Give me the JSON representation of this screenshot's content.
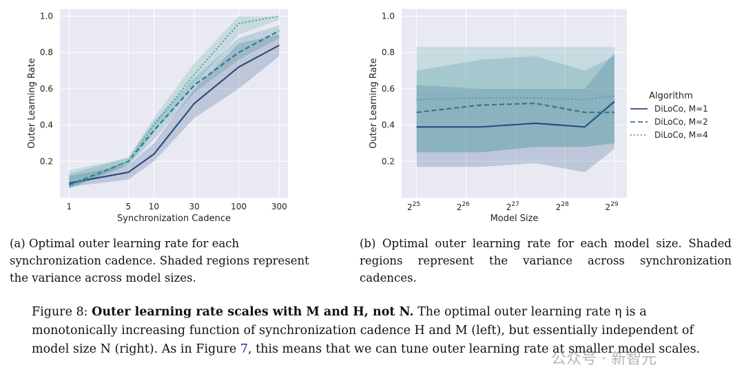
{
  "chart_data": [
    {
      "type": "line",
      "panel": "a",
      "title": "",
      "xlabel": "Synchronization Cadence",
      "ylabel": "Outer Learning Rate",
      "xscale": "log",
      "x": [
        1,
        5,
        10,
        30,
        100,
        300
      ],
      "xtick_labels": [
        "1",
        "5",
        "10",
        "30",
        "100",
        "300"
      ],
      "ylim": [
        0.0,
        1.04
      ],
      "yticks": [
        0.2,
        0.4,
        0.6,
        0.8,
        1.0
      ],
      "ytick_labels": [
        "0.2",
        "0.4",
        "0.6",
        "0.8",
        "1.0"
      ],
      "grid": true,
      "series": [
        {
          "name": "DiLoCo, M=1",
          "style": "solid",
          "color": "#2b4c7e",
          "values": [
            0.08,
            0.14,
            0.24,
            0.52,
            0.72,
            0.84
          ],
          "lower": [
            0.06,
            0.1,
            0.2,
            0.44,
            0.6,
            0.78
          ],
          "upper": [
            0.12,
            0.18,
            0.3,
            0.6,
            0.85,
            0.9
          ]
        },
        {
          "name": "DiLoCo, M=2",
          "style": "dashed",
          "color": "#2a7a8c",
          "values": [
            0.07,
            0.2,
            0.37,
            0.62,
            0.8,
            0.92
          ],
          "lower": [
            0.05,
            0.18,
            0.32,
            0.58,
            0.76,
            0.88
          ],
          "upper": [
            0.13,
            0.22,
            0.42,
            0.66,
            0.88,
            0.95
          ]
        },
        {
          "name": "DiLoCo, M=4",
          "style": "dotted",
          "color": "#4fa3a0",
          "values": [
            0.06,
            0.2,
            0.4,
            0.68,
            0.96,
            1.0
          ],
          "lower": [
            0.05,
            0.18,
            0.36,
            0.62,
            0.9,
            0.98
          ],
          "upper": [
            0.15,
            0.22,
            0.44,
            0.74,
            1.0,
            1.0
          ]
        }
      ]
    },
    {
      "type": "line",
      "panel": "b",
      "title": "",
      "xlabel": "Model Size",
      "ylabel": "Outer Learning Rate",
      "xscale": "log2",
      "x_exponents": [
        25,
        26.3,
        27.4,
        28.4,
        29
      ],
      "xtick_exponents": [
        25,
        26,
        27,
        28,
        29
      ],
      "xtick_base": "2",
      "ylim": [
        0.0,
        1.04
      ],
      "yticks": [
        0.2,
        0.4,
        0.6,
        0.8,
        1.0
      ],
      "ytick_labels": [
        "0.2",
        "0.4",
        "0.6",
        "0.8",
        "1.0"
      ],
      "grid": true,
      "legend": {
        "title": "Algorithm",
        "location": "outside-right"
      },
      "series": [
        {
          "name": "DiLoCo, M=1",
          "style": "solid",
          "color": "#2b4c7e",
          "values": [
            0.39,
            0.39,
            0.41,
            0.39,
            0.53
          ],
          "lower": [
            0.17,
            0.17,
            0.19,
            0.14,
            0.27
          ],
          "upper": [
            0.62,
            0.6,
            0.6,
            0.6,
            0.8
          ]
        },
        {
          "name": "DiLoCo, M=2",
          "style": "dashed",
          "color": "#2a7a8c",
          "values": [
            0.47,
            0.51,
            0.52,
            0.47,
            0.47
          ],
          "lower": [
            0.25,
            0.25,
            0.28,
            0.28,
            0.3
          ],
          "upper": [
            0.7,
            0.76,
            0.78,
            0.7,
            0.78
          ]
        },
        {
          "name": "DiLoCo, M=4",
          "style": "dotted",
          "color": "#4fa3a0",
          "values": [
            0.54,
            0.55,
            0.55,
            0.54,
            0.56
          ],
          "lower": [
            0.25,
            0.25,
            0.28,
            0.28,
            0.3
          ],
          "upper": [
            0.83,
            0.83,
            0.83,
            0.83,
            0.83
          ]
        }
      ]
    }
  ],
  "captions": {
    "a": "(a) Optimal outer learning rate for each synchronization cadence. Shaded regions represent the variance across model sizes.",
    "b": "(b) Optimal outer learning rate for each model size. Shaded regions represent the variance across synchronization cadences."
  },
  "figure_caption": {
    "prefix": "Figure 8: ",
    "bold": "Outer learning rate scales with M and H, not N.",
    "text1": " The optimal outer learning rate η is a monotonically increasing function of synchronization cadence H and M (left), but essentially independent of model size N (right). As in Figure ",
    "ref": "7",
    "text2": ", this means that we can tune outer learning rate at smaller model scales."
  },
  "watermark": "公众号 · 新智元"
}
